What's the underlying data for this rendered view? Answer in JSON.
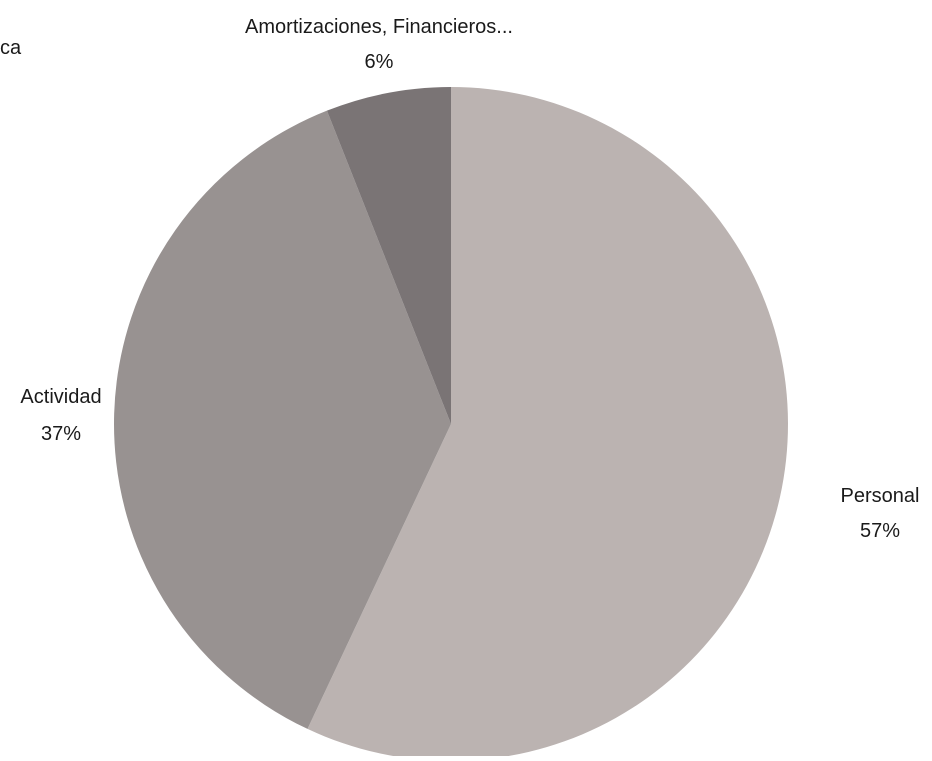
{
  "chart_data": {
    "type": "pie",
    "title": "",
    "clipped_text": "ca",
    "slices": [
      {
        "label": "Personal",
        "value": 57,
        "value_label": "57%",
        "color": "#bbb3b1"
      },
      {
        "label": "Actividad",
        "value": 37,
        "value_label": "37%",
        "color": "#989291"
      },
      {
        "label": "Amortizaciones, Financieros...",
        "value": 6,
        "value_label": "6%",
        "color": "#7a7475"
      }
    ],
    "start_angle": "12 o'clock",
    "direction": "clockwise",
    "legend": "none"
  }
}
